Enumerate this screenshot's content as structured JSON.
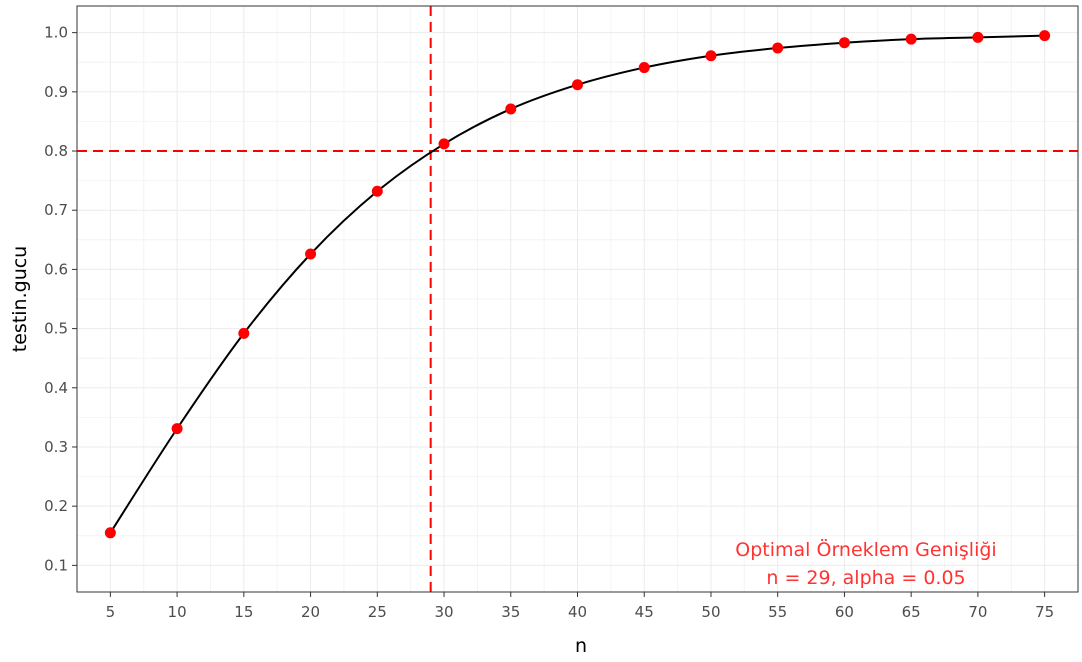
{
  "chart_data": {
    "type": "line",
    "title": "",
    "xlabel": "n",
    "ylabel": "testin.gucu",
    "xlim": [
      2.5,
      77.5
    ],
    "ylim": [
      0.055,
      1.045
    ],
    "xticks": [
      5,
      10,
      15,
      20,
      25,
      30,
      35,
      40,
      45,
      50,
      55,
      60,
      65,
      70,
      75
    ],
    "yticks": [
      0.1,
      0.2,
      0.3,
      0.4,
      0.5,
      0.6,
      0.7,
      0.8,
      0.9,
      1.0
    ],
    "xtick_labels": [
      "5",
      "10",
      "15",
      "20",
      "25",
      "30",
      "35",
      "40",
      "45",
      "50",
      "55",
      "60",
      "65",
      "70",
      "75"
    ],
    "ytick_labels": [
      "0.1",
      "0.2",
      "0.3",
      "0.4",
      "0.5",
      "0.6",
      "0.7",
      "0.8",
      "0.9",
      "1.0"
    ],
    "grid": true,
    "series": [
      {
        "x": [
          5,
          10,
          15,
          20,
          25,
          30,
          35,
          40,
          45,
          50,
          55,
          60,
          65,
          70,
          75
        ],
        "y": [
          0.155,
          0.331,
          0.492,
          0.626,
          0.732,
          0.812,
          0.871,
          0.912,
          0.941,
          0.961,
          0.974,
          0.983,
          0.989,
          0.992,
          0.995
        ]
      }
    ],
    "reference_lines": {
      "vertical_x": 29,
      "horizontal_y": 0.8,
      "color": "#ff0000"
    },
    "annotation": {
      "lines": [
        "Optimal Örneklem Genişliği",
        "n = 29, alpha = 0.05"
      ],
      "color": "#ff3333"
    },
    "colors": {
      "line": "#000000",
      "points": "#ff0000",
      "grid": "#ebebeb",
      "panel_border": "#333333"
    }
  }
}
